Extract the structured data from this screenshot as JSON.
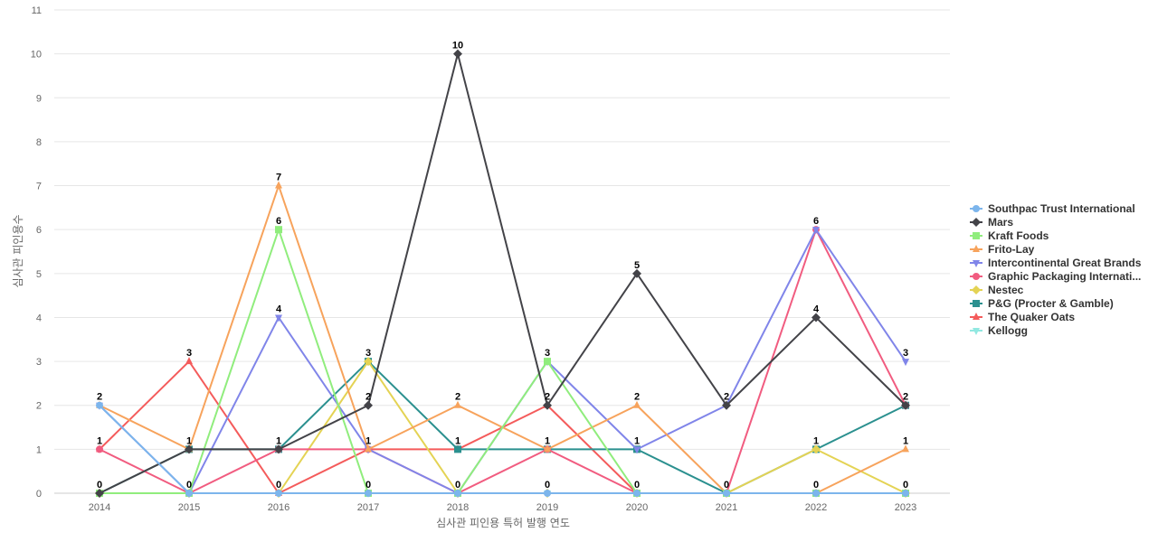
{
  "chart_data": {
    "type": "line",
    "xlabel": "심사관 피인용 특허 발행 연도",
    "ylabel": "심사관 피인용수",
    "ylim": [
      0,
      11
    ],
    "yticks": [
      0,
      1,
      2,
      3,
      4,
      5,
      6,
      7,
      8,
      9,
      10,
      11
    ],
    "grid": true,
    "legend_position": "right",
    "categories": [
      "2014",
      "2015",
      "2016",
      "2017",
      "2018",
      "2019",
      "2020",
      "2021",
      "2022",
      "2023"
    ],
    "series": [
      {
        "name": "Southpac Trust International",
        "color": "#7cb5ec",
        "marker": "circle",
        "values": [
          2,
          0,
          0,
          0,
          0,
          0,
          0,
          0,
          0,
          0
        ]
      },
      {
        "name": "Mars",
        "color": "#434348",
        "marker": "diamond",
        "values": [
          0,
          1,
          1,
          2,
          10,
          2,
          5,
          2,
          4,
          2
        ]
      },
      {
        "name": "Kraft Foods",
        "color": "#90ed7d",
        "marker": "square",
        "values": [
          0,
          0,
          6,
          0,
          0,
          3,
          0,
          0,
          0,
          0
        ]
      },
      {
        "name": "Frito-Lay",
        "color": "#f7a35c",
        "marker": "triangle",
        "values": [
          2,
          1,
          7,
          1,
          2,
          1,
          2,
          0,
          0,
          1
        ]
      },
      {
        "name": "Intercontinental Great Brands",
        "color": "#8085e9",
        "marker": "triangle-down",
        "values": [
          2,
          0,
          4,
          1,
          0,
          3,
          1,
          2,
          6,
          3
        ]
      },
      {
        "name": "Graphic Packaging Internati...",
        "color": "#f15c80",
        "marker": "circle",
        "values": [
          1,
          0,
          1,
          1,
          0,
          1,
          0,
          0,
          6,
          2
        ]
      },
      {
        "name": "Nestec",
        "color": "#e4d354",
        "marker": "diamond",
        "values": [
          0,
          0,
          0,
          3,
          0,
          0,
          0,
          0,
          1,
          0
        ]
      },
      {
        "name": "P&G (Procter & Gamble)",
        "color": "#2b908f",
        "marker": "square",
        "values": [
          0,
          1,
          1,
          3,
          1,
          1,
          1,
          0,
          1,
          2
        ]
      },
      {
        "name": "The Quaker Oats",
        "color": "#f45b5b",
        "marker": "triangle",
        "values": [
          1,
          3,
          0,
          1,
          1,
          2,
          0,
          0,
          0,
          0
        ]
      },
      {
        "name": "Kellogg",
        "color": "#91e8e1",
        "marker": "triangle-down",
        "values": [
          0,
          0,
          0,
          0,
          0,
          0,
          0,
          0,
          0,
          0
        ]
      }
    ],
    "data_labels": [
      {
        "x": "2014",
        "value": 2
      },
      {
        "x": "2014",
        "value": 1
      },
      {
        "x": "2014",
        "value": 0
      },
      {
        "x": "2015",
        "value": 3
      },
      {
        "x": "2015",
        "value": 1
      },
      {
        "x": "2015",
        "value": 0
      },
      {
        "x": "2016",
        "value": 7
      },
      {
        "x": "2016",
        "value": 6
      },
      {
        "x": "2016",
        "value": 4
      },
      {
        "x": "2016",
        "value": 1
      },
      {
        "x": "2016",
        "value": 0
      },
      {
        "x": "2017",
        "value": 3
      },
      {
        "x": "2017",
        "value": 2
      },
      {
        "x": "2017",
        "value": 1
      },
      {
        "x": "2017",
        "value": 0
      },
      {
        "x": "2018",
        "value": 10
      },
      {
        "x": "2018",
        "value": 2
      },
      {
        "x": "2018",
        "value": 1
      },
      {
        "x": "2018",
        "value": 0
      },
      {
        "x": "2019",
        "value": 3
      },
      {
        "x": "2019",
        "value": 2
      },
      {
        "x": "2019",
        "value": 1
      },
      {
        "x": "2019",
        "value": 0
      },
      {
        "x": "2020",
        "value": 5
      },
      {
        "x": "2020",
        "value": 2
      },
      {
        "x": "2020",
        "value": 1
      },
      {
        "x": "2020",
        "value": 0
      },
      {
        "x": "2021",
        "value": 2
      },
      {
        "x": "2021",
        "value": 0
      },
      {
        "x": "2022",
        "value": 6
      },
      {
        "x": "2022",
        "value": 4
      },
      {
        "x": "2022",
        "value": 1
      },
      {
        "x": "2022",
        "value": 0
      },
      {
        "x": "2023",
        "value": 3
      },
      {
        "x": "2023",
        "value": 2
      },
      {
        "x": "2023",
        "value": 1
      },
      {
        "x": "2023",
        "value": 0
      }
    ]
  }
}
